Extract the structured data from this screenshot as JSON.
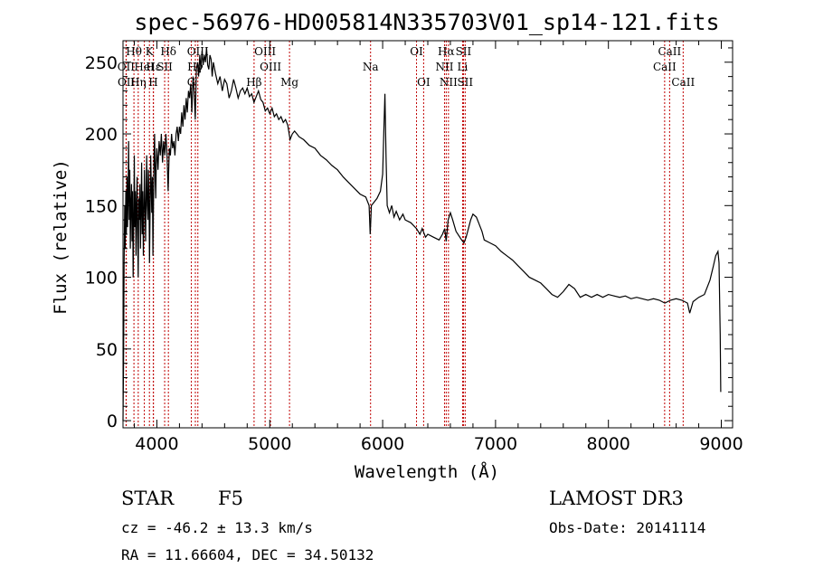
{
  "chart_data": {
    "type": "line",
    "title": "spec-56976-HD005814N335703V01_sp14-121.fits",
    "xlabel": "Wavelength (Å)",
    "ylabel": "Flux (relative)",
    "xlim": [
      3700,
      9100
    ],
    "ylim": [
      -5,
      265
    ],
    "x_ticks": [
      {
        "value": 4000,
        "label": "4000"
      },
      {
        "value": 5000,
        "label": "5000"
      },
      {
        "value": 6000,
        "label": "6000"
      },
      {
        "value": 7000,
        "label": "7000"
      },
      {
        "value": 8000,
        "label": "8000"
      },
      {
        "value": 9000,
        "label": "9000"
      }
    ],
    "y_ticks": [
      {
        "value": 0,
        "label": "0"
      },
      {
        "value": 50,
        "label": "50"
      },
      {
        "value": 100,
        "label": "100"
      },
      {
        "value": 150,
        "label": "150"
      },
      {
        "value": 200,
        "label": "200"
      },
      {
        "value": 250,
        "label": "250"
      }
    ],
    "grid": false,
    "spectrum": [
      [
        3700,
        0
      ],
      [
        3705,
        40
      ],
      [
        3710,
        110
      ],
      [
        3715,
        150
      ],
      [
        3720,
        120
      ],
      [
        3725,
        160
      ],
      [
        3730,
        130
      ],
      [
        3735,
        170
      ],
      [
        3740,
        135
      ],
      [
        3745,
        155
      ],
      [
        3750,
        195
      ],
      [
        3755,
        140
      ],
      [
        3760,
        175
      ],
      [
        3765,
        120
      ],
      [
        3770,
        150
      ],
      [
        3775,
        165
      ],
      [
        3780,
        125
      ],
      [
        3785,
        160
      ],
      [
        3790,
        100
      ],
      [
        3795,
        140
      ],
      [
        3800,
        185
      ],
      [
        3805,
        135
      ],
      [
        3810,
        160
      ],
      [
        3815,
        115
      ],
      [
        3820,
        150
      ],
      [
        3825,
        170
      ],
      [
        3830,
        130
      ],
      [
        3835,
        100
      ],
      [
        3840,
        155
      ],
      [
        3845,
        140
      ],
      [
        3850,
        165
      ],
      [
        3855,
        120
      ],
      [
        3860,
        150
      ],
      [
        3865,
        180
      ],
      [
        3870,
        130
      ],
      [
        3875,
        160
      ],
      [
        3880,
        115
      ],
      [
        3885,
        145
      ],
      [
        3890,
        175
      ],
      [
        3895,
        150
      ],
      [
        3900,
        125
      ],
      [
        3905,
        160
      ],
      [
        3910,
        185
      ],
      [
        3915,
        150
      ],
      [
        3920,
        140
      ],
      [
        3925,
        175
      ],
      [
        3930,
        160
      ],
      [
        3935,
        110
      ],
      [
        3940,
        150
      ],
      [
        3945,
        185
      ],
      [
        3950,
        165
      ],
      [
        3955,
        145
      ],
      [
        3960,
        170
      ],
      [
        3965,
        115
      ],
      [
        3970,
        150
      ],
      [
        3975,
        185
      ],
      [
        3980,
        200
      ],
      [
        3985,
        170
      ],
      [
        3990,
        155
      ],
      [
        3995,
        180
      ],
      [
        4000,
        190
      ],
      [
        4010,
        175
      ],
      [
        4020,
        195
      ],
      [
        4030,
        185
      ],
      [
        4040,
        200
      ],
      [
        4050,
        180
      ],
      [
        4060,
        195
      ],
      [
        4070,
        185
      ],
      [
        4080,
        200
      ],
      [
        4090,
        185
      ],
      [
        4100,
        160
      ],
      [
        4110,
        190
      ],
      [
        4120,
        185
      ],
      [
        4130,
        200
      ],
      [
        4140,
        190
      ],
      [
        4150,
        195
      ],
      [
        4160,
        185
      ],
      [
        4170,
        200
      ],
      [
        4180,
        205
      ],
      [
        4190,
        195
      ],
      [
        4200,
        205
      ],
      [
        4210,
        200
      ],
      [
        4220,
        215
      ],
      [
        4230,
        205
      ],
      [
        4240,
        220
      ],
      [
        4250,
        210
      ],
      [
        4260,
        225
      ],
      [
        4270,
        215
      ],
      [
        4280,
        230
      ],
      [
        4290,
        225
      ],
      [
        4300,
        235
      ],
      [
        4310,
        215
      ],
      [
        4320,
        240
      ],
      [
        4330,
        230
      ],
      [
        4340,
        210
      ],
      [
        4350,
        245
      ],
      [
        4360,
        250
      ],
      [
        4370,
        240
      ],
      [
        4380,
        255
      ],
      [
        4390,
        245
      ],
      [
        4400,
        258
      ],
      [
        4410,
        248
      ],
      [
        4420,
        255
      ],
      [
        4430,
        250
      ],
      [
        4440,
        260
      ],
      [
        4450,
        248
      ],
      [
        4460,
        245
      ],
      [
        4470,
        255
      ],
      [
        4480,
        252
      ],
      [
        4490,
        240
      ],
      [
        4500,
        250
      ],
      [
        4520,
        242
      ],
      [
        4540,
        235
      ],
      [
        4560,
        240
      ],
      [
        4580,
        230
      ],
      [
        4600,
        238
      ],
      [
        4620,
        235
      ],
      [
        4640,
        225
      ],
      [
        4660,
        230
      ],
      [
        4680,
        238
      ],
      [
        4700,
        232
      ],
      [
        4720,
        225
      ],
      [
        4740,
        230
      ],
      [
        4760,
        232
      ],
      [
        4780,
        228
      ],
      [
        4800,
        232
      ],
      [
        4820,
        226
      ],
      [
        4840,
        228
      ],
      [
        4860,
        222
      ],
      [
        4880,
        226
      ],
      [
        4900,
        230
      ],
      [
        4920,
        224
      ],
      [
        4940,
        222
      ],
      [
        4960,
        216
      ],
      [
        4980,
        218
      ],
      [
        5000,
        214
      ],
      [
        5020,
        218
      ],
      [
        5040,
        212
      ],
      [
        5060,
        214
      ],
      [
        5080,
        210
      ],
      [
        5100,
        212
      ],
      [
        5120,
        208
      ],
      [
        5140,
        210
      ],
      [
        5160,
        206
      ],
      [
        5180,
        196
      ],
      [
        5200,
        200
      ],
      [
        5220,
        202
      ],
      [
        5240,
        200
      ],
      [
        5260,
        198
      ],
      [
        5300,
        196
      ],
      [
        5350,
        192
      ],
      [
        5400,
        190
      ],
      [
        5450,
        185
      ],
      [
        5500,
        182
      ],
      [
        5550,
        178
      ],
      [
        5600,
        175
      ],
      [
        5650,
        170
      ],
      [
        5700,
        166
      ],
      [
        5750,
        162
      ],
      [
        5800,
        158
      ],
      [
        5850,
        156
      ],
      [
        5880,
        150
      ],
      [
        5890,
        130
      ],
      [
        5895,
        140
      ],
      [
        5900,
        150
      ],
      [
        5920,
        152
      ],
      [
        5950,
        155
      ],
      [
        5980,
        160
      ],
      [
        6000,
        172
      ],
      [
        6010,
        200
      ],
      [
        6020,
        228
      ],
      [
        6030,
        185
      ],
      [
        6040,
        150
      ],
      [
        6060,
        145
      ],
      [
        6080,
        150
      ],
      [
        6100,
        142
      ],
      [
        6120,
        146
      ],
      [
        6150,
        140
      ],
      [
        6180,
        144
      ],
      [
        6200,
        140
      ],
      [
        6250,
        138
      ],
      [
        6300,
        134
      ],
      [
        6330,
        130
      ],
      [
        6350,
        134
      ],
      [
        6380,
        128
      ],
      [
        6400,
        130
      ],
      [
        6450,
        128
      ],
      [
        6500,
        126
      ],
      [
        6530,
        130
      ],
      [
        6550,
        134
      ],
      [
        6563,
        125
      ],
      [
        6580,
        140
      ],
      [
        6600,
        145
      ],
      [
        6620,
        140
      ],
      [
        6650,
        132
      ],
      [
        6700,
        126
      ],
      [
        6720,
        124
      ],
      [
        6740,
        128
      ],
      [
        6760,
        134
      ],
      [
        6780,
        140
      ],
      [
        6800,
        144
      ],
      [
        6830,
        142
      ],
      [
        6850,
        138
      ],
      [
        6880,
        132
      ],
      [
        6900,
        126
      ],
      [
        6950,
        124
      ],
      [
        7000,
        122
      ],
      [
        7050,
        118
      ],
      [
        7100,
        115
      ],
      [
        7150,
        112
      ],
      [
        7200,
        108
      ],
      [
        7250,
        104
      ],
      [
        7300,
        100
      ],
      [
        7350,
        98
      ],
      [
        7400,
        96
      ],
      [
        7450,
        92
      ],
      [
        7500,
        88
      ],
      [
        7550,
        86
      ],
      [
        7600,
        90
      ],
      [
        7650,
        95
      ],
      [
        7700,
        92
      ],
      [
        7750,
        86
      ],
      [
        7800,
        88
      ],
      [
        7850,
        86
      ],
      [
        7900,
        88
      ],
      [
        7950,
        86
      ],
      [
        8000,
        88
      ],
      [
        8050,
        87
      ],
      [
        8100,
        86
      ],
      [
        8150,
        87
      ],
      [
        8200,
        85
      ],
      [
        8250,
        86
      ],
      [
        8300,
        85
      ],
      [
        8350,
        84
      ],
      [
        8400,
        85
      ],
      [
        8450,
        84
      ],
      [
        8500,
        82
      ],
      [
        8550,
        84
      ],
      [
        8600,
        85
      ],
      [
        8650,
        84
      ],
      [
        8700,
        82
      ],
      [
        8720,
        75
      ],
      [
        8750,
        83
      ],
      [
        8800,
        86
      ],
      [
        8850,
        88
      ],
      [
        8900,
        98
      ],
      [
        8930,
        108
      ],
      [
        8950,
        115
      ],
      [
        8970,
        118
      ],
      [
        8980,
        110
      ],
      [
        8990,
        60
      ],
      [
        8995,
        20
      ]
    ],
    "line_markers": [
      {
        "label": "Hθ",
        "x": 3797,
        "row": 1
      },
      {
        "label": "OII",
        "x": 3727,
        "row": 2
      },
      {
        "label": "OII",
        "x": 3729,
        "row": 3
      },
      {
        "label": "K",
        "x": 3934,
        "row": 1
      },
      {
        "label": "Hε",
        "x": 3970,
        "row": 2
      },
      {
        "label": "Hη",
        "x": 3835,
        "row": 3
      },
      {
        "label": "HeI",
        "x": 3889,
        "row": 2
      },
      {
        "label": "H",
        "x": 3968,
        "row": 3
      },
      {
        "label": "SII",
        "x": 4069,
        "row": 2
      },
      {
        "label": "Hδ",
        "x": 4102,
        "row": 1
      },
      {
        "label": "OIII",
        "x": 4363,
        "row": 1
      },
      {
        "label": "Hγ",
        "x": 4341,
        "row": 2
      },
      {
        "label": "G",
        "x": 4305,
        "row": 3
      },
      {
        "label": "Hβ",
        "x": 4861,
        "row": 3
      },
      {
        "label": "OIII",
        "x": 4959,
        "row": 1
      },
      {
        "label": "OIII",
        "x": 5007,
        "row": 2
      },
      {
        "label": "Mg",
        "x": 5175,
        "row": 3
      },
      {
        "label": "Na",
        "x": 5893,
        "row": 2
      },
      {
        "label": "OI",
        "x": 6300,
        "row": 1
      },
      {
        "label": "OI",
        "x": 6363,
        "row": 3
      },
      {
        "label": "Hα",
        "x": 6563,
        "row": 1
      },
      {
        "label": "NII",
        "x": 6548,
        "row": 2
      },
      {
        "label": "NII",
        "x": 6583,
        "row": 3
      },
      {
        "label": "SII",
        "x": 6716,
        "row": 1
      },
      {
        "label": "Li",
        "x": 6708,
        "row": 2
      },
      {
        "label": "SII",
        "x": 6731,
        "row": 3
      },
      {
        "label": "CaII",
        "x": 8542,
        "row": 1
      },
      {
        "label": "CaII",
        "x": 8498,
        "row": 2
      },
      {
        "label": "CaII",
        "x": 8662,
        "row": 3
      }
    ],
    "marker_color": "#c00000"
  },
  "info": {
    "object_class": "STAR",
    "subclass": "F5",
    "survey": "LAMOST DR3",
    "velocity": "cz = -46.2 ± 13.3 km/s",
    "obs_date": "Obs-Date: 20141114",
    "coords": "RA =  11.66604, DEC =  34.50132"
  }
}
